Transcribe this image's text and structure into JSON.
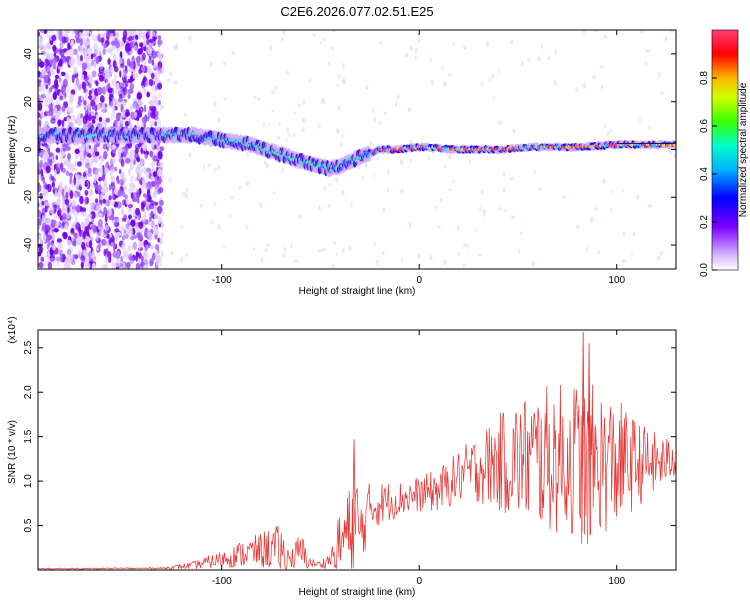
{
  "title": "C2E6.2026.077.02.51.E25",
  "chart_data": [
    {
      "type": "heatmap",
      "name": "spectrogram",
      "xlabel": "Height of straight line (km)",
      "ylabel": "Frequency (Hz)",
      "xlim": [
        -193,
        130
      ],
      "ylim": [
        -50,
        50
      ],
      "x_ticks": [
        -100,
        0,
        100
      ],
      "y_ticks": [
        -40,
        -20,
        0,
        20,
        40
      ],
      "colorbar": {
        "label": "Normalized spectral amplitude",
        "range": [
          0,
          1
        ],
        "ticks": [
          "0.0",
          "0.2",
          "0.4",
          "0.6",
          "0.8"
        ]
      },
      "trace": {
        "x": [
          -193,
          -160,
          -130,
          -115,
          -100,
          -85,
          -70,
          -55,
          -45,
          -40,
          -30,
          -20,
          -10,
          0,
          20,
          40,
          60,
          80,
          100,
          130
        ],
        "y": [
          6,
          6,
          6,
          6,
          4,
          2,
          -2,
          -6,
          -8,
          -7,
          -3,
          0,
          0,
          1,
          0,
          0,
          1,
          1,
          2,
          2
        ]
      }
    },
    {
      "type": "line",
      "name": "snr",
      "xlabel": "Height of straight line (km)",
      "ylabel": "SNR (10 * v/v)",
      "y_scale_label": "(x10⁴)",
      "color": "#e8312f",
      "xlim": [
        -193,
        130
      ],
      "ylim": [
        0,
        2.7
      ],
      "x_ticks": [
        -100,
        0,
        100
      ],
      "y_ticks": [
        0.5,
        1.0,
        1.5,
        2.0,
        2.5
      ],
      "y_tick_labels": [
        "0.5",
        "1.0",
        "1.5",
        "2.0",
        "2.5"
      ],
      "envelope": {
        "x": [
          -193,
          -130,
          -115,
          -100,
          -90,
          -80,
          -75,
          -70,
          -65,
          -60,
          -55,
          -50,
          -45,
          -40,
          -35,
          -32,
          -30,
          -25,
          -20,
          -10,
          0,
          10,
          20,
          30,
          40,
          50,
          60,
          70,
          80,
          90,
          100,
          110,
          120,
          130
        ],
        "mean": [
          0.01,
          0.02,
          0.05,
          0.12,
          0.18,
          0.22,
          0.25,
          0.2,
          0.12,
          0.2,
          0.08,
          0.06,
          0.12,
          0.3,
          0.45,
          0.6,
          0.4,
          0.7,
          0.75,
          0.8,
          0.85,
          0.9,
          1.05,
          1.15,
          1.2,
          1.25,
          1.25,
          1.25,
          1.25,
          1.22,
          1.2,
          1.2,
          1.2,
          1.25
        ],
        "amp": [
          0.01,
          0.01,
          0.04,
          0.1,
          0.15,
          0.2,
          0.25,
          0.3,
          0.1,
          0.25,
          0.05,
          0.04,
          0.1,
          0.4,
          0.5,
          0.6,
          0.4,
          0.3,
          0.25,
          0.2,
          0.2,
          0.25,
          0.3,
          0.4,
          0.55,
          0.7,
          0.8,
          0.85,
          0.9,
          0.85,
          0.75,
          0.5,
          0.35,
          0.2
        ]
      },
      "peaks": [
        {
          "x": -33,
          "y": 1.47
        },
        {
          "x": 83,
          "y": 2.68
        },
        {
          "x": 86,
          "y": 2.55
        }
      ]
    }
  ]
}
